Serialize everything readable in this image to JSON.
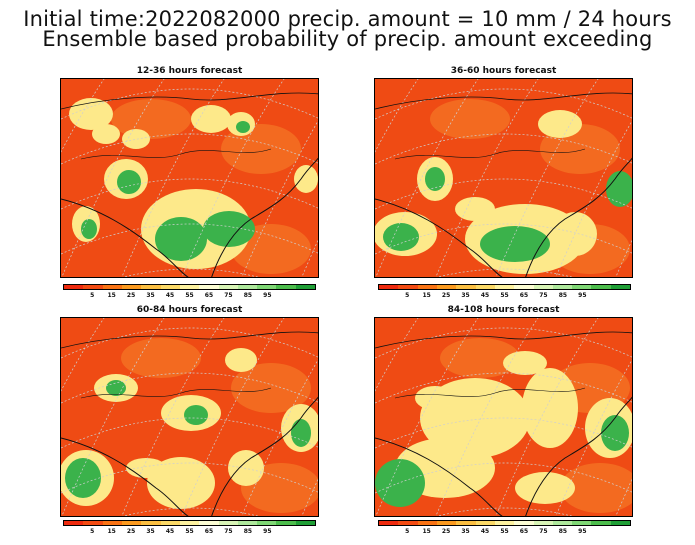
{
  "title_line1": "Initial time:2022082000 precip. amount = 10 mm / 24 hours",
  "title_line2": "Ensemble based probability of precip. amount exceeding",
  "panels": [
    {
      "title": "12-36 hours forecast",
      "variant": 0
    },
    {
      "title": "36-60 hours forecast",
      "variant": 1
    },
    {
      "title": "60-84 hours forecast",
      "variant": 2
    },
    {
      "title": "84-108 hours forecast",
      "variant": 3
    }
  ],
  "colorbar": {
    "colors": [
      "#ee2a0e",
      "#f34b12",
      "#f97314",
      "#fb9a1f",
      "#fbbf42",
      "#fbd967",
      "#fdf2a0",
      "#fcfdd4",
      "#d8f4b6",
      "#aee89c",
      "#7fd775",
      "#4cbd4c",
      "#1f9f36"
    ],
    "tick_labels": [
      "5",
      "15",
      "25",
      "35",
      "45",
      "55",
      "65",
      "75",
      "85",
      "95"
    ]
  },
  "colors": {
    "high_precip": "#3bb24b",
    "mid_precip": "#fde98a",
    "low_precip": "#f04a17",
    "base": "#ef4b14"
  }
}
